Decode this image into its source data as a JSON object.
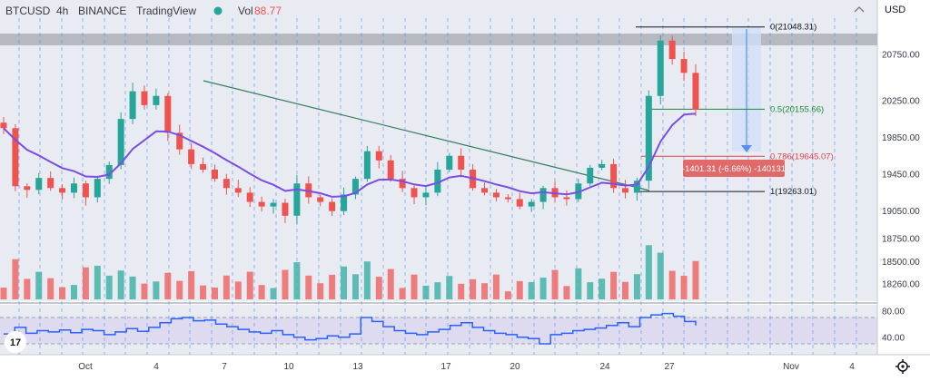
{
  "header": {
    "symbol": "BTCUSD",
    "interval": "4h",
    "exchange": "BINANCE",
    "platform": "TradingView",
    "vol_label": "Vol",
    "vol_value": "88.77",
    "currency": "USD",
    "logo_text": "17"
  },
  "colors": {
    "up": "#26a69a",
    "down": "#ef5350",
    "vol_up": "#4db6ac",
    "vol_down": "#ef7070",
    "ma": "#7b4ee3",
    "trendline": "#2e7d5b",
    "rsi": "#2962ff",
    "fib_black": "#131722",
    "fib_green": "#1b8a3a",
    "fib_red": "#e0454a",
    "measure_box": "#cfe0f7",
    "measure_line": "#5b8def",
    "measure_label_bg": "#e06a6a",
    "session_lines": "#5b8def",
    "resistance_band": "#b3b6bd",
    "background": "#ffffff"
  },
  "chart_data": {
    "type": "candlestick",
    "title": "BTCUSD 4h BINANCE",
    "x_ticks": [
      "Oct",
      "4",
      "7",
      "10",
      "13",
      "17",
      "20",
      "24",
      "27",
      "Nov",
      "4"
    ],
    "y_ticks": [
      "20750.00",
      "20250.00",
      "19850.00",
      "19450.00",
      "19050.00",
      "18750.00",
      "18500.00",
      "18260.00"
    ],
    "ylim": [
      18200,
      21300
    ],
    "fib_levels": [
      {
        "ratio": "0",
        "label": "0(21048.31)",
        "value": 21048.31
      },
      {
        "ratio": "0.5",
        "label": "0.5(20155.66)",
        "value": 20155.66
      },
      {
        "ratio": "0.786",
        "label": "0.786(19645.07)",
        "value": 19645.07
      },
      {
        "ratio": "1",
        "label": "1(19263.01)",
        "value": 19263.01
      }
    ],
    "measure_label": "-1401.31 (-6.66%) -140131",
    "rsi": {
      "ticks": [
        "80.00",
        "40.00"
      ],
      "upper_band": 70,
      "lower_band": 30,
      "series_approx": [
        45,
        55,
        46,
        50,
        48,
        51,
        47,
        52,
        50,
        44,
        48,
        53,
        49,
        55,
        62,
        68,
        70,
        65,
        66,
        60,
        56,
        52,
        48,
        46,
        50,
        44,
        40,
        36,
        38,
        42,
        40,
        45,
        70,
        64,
        56,
        50,
        46,
        44,
        48,
        52,
        58,
        62,
        55,
        50,
        46,
        44,
        40,
        38,
        30,
        44,
        46,
        50,
        52,
        54,
        58,
        62,
        56,
        70,
        74,
        76,
        72,
        64,
        58
      ]
    },
    "candles_approx": [
      19950,
      19320,
      19280,
      19410,
      19300,
      19250,
      19350,
      19200,
      19400,
      19550,
      20050,
      20350,
      20200,
      20300,
      19900,
      19720,
      19560,
      19500,
      19400,
      19300,
      19250,
      19150,
      19100,
      19140,
      19000,
      19350,
      19200,
      19150,
      19050,
      19230,
      19400,
      19700,
      19600,
      19400,
      19300,
      19200,
      19250,
      19500,
      19650,
      19500,
      19300,
      19250,
      19200,
      19180,
      19100,
      19150,
      19300,
      19200,
      19180,
      19350,
      19520,
      19560,
      19300,
      19250,
      19380,
      20300,
      20900,
      20700,
      20550,
      20150
    ]
  }
}
